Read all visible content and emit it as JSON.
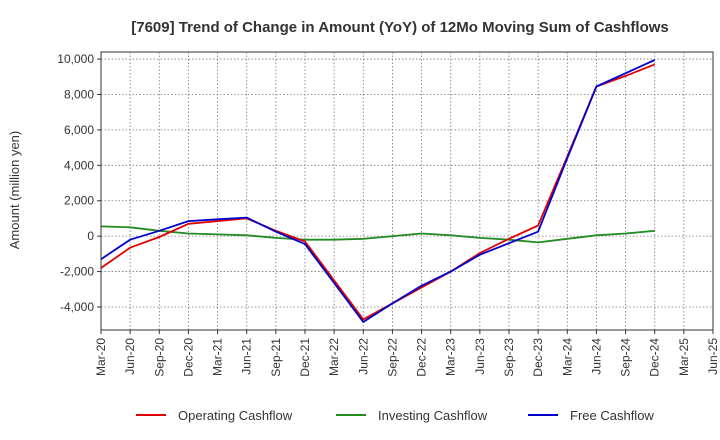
{
  "chart_data": {
    "type": "line",
    "title": "[7609]  Trend of Change in Amount (YoY) of 12Mo Moving Sum of Cashflows",
    "xlabel": "",
    "ylabel": "Amount (million yen)",
    "ylim": [
      -5300,
      10400
    ],
    "yticks": [
      10000,
      8000,
      6000,
      4000,
      2000,
      0,
      -2000,
      -4000
    ],
    "ytick_labels": [
      "10,000",
      "8,000",
      "6,000",
      "4,000",
      "2,000",
      "0",
      "-2,000",
      "-4,000"
    ],
    "categories": [
      "Mar-20",
      "Jun-20",
      "Sep-20",
      "Dec-20",
      "Mar-21",
      "Jun-21",
      "Sep-21",
      "Dec-21",
      "Mar-22",
      "Jun-22",
      "Sep-22",
      "Dec-22",
      "Mar-23",
      "Jun-23",
      "Sep-23",
      "Dec-23",
      "Mar-24",
      "Jun-24",
      "Sep-24",
      "Dec-24",
      "Mar-25",
      "Jun-25"
    ],
    "grid": true,
    "legend_position": "bottom",
    "series": [
      {
        "name": "Operating Cashflow",
        "color": "#e00000",
        "values": [
          -1800,
          -650,
          -50,
          700,
          850,
          1000,
          300,
          -300,
          null,
          -4700,
          -3800,
          -2900,
          -2000,
          -950,
          -150,
          600,
          4500,
          8450,
          9050,
          9700,
          null,
          null
        ]
      },
      {
        "name": "Investing Cashflow",
        "color": "#228b22",
        "values": [
          550,
          500,
          300,
          150,
          100,
          50,
          -100,
          -200,
          -200,
          -150,
          0,
          150,
          50,
          -100,
          -200,
          -350,
          -150,
          50,
          150,
          300,
          null,
          null
        ]
      },
      {
        "name": "Free Cashflow",
        "color": "#0000cc",
        "values": [
          -1300,
          -200,
          300,
          850,
          950,
          1050,
          250,
          -450,
          null,
          -4850,
          -3800,
          -2800,
          -2000,
          -1050,
          -400,
          250,
          4400,
          8450,
          9200,
          9950,
          null,
          null
        ]
      }
    ]
  }
}
